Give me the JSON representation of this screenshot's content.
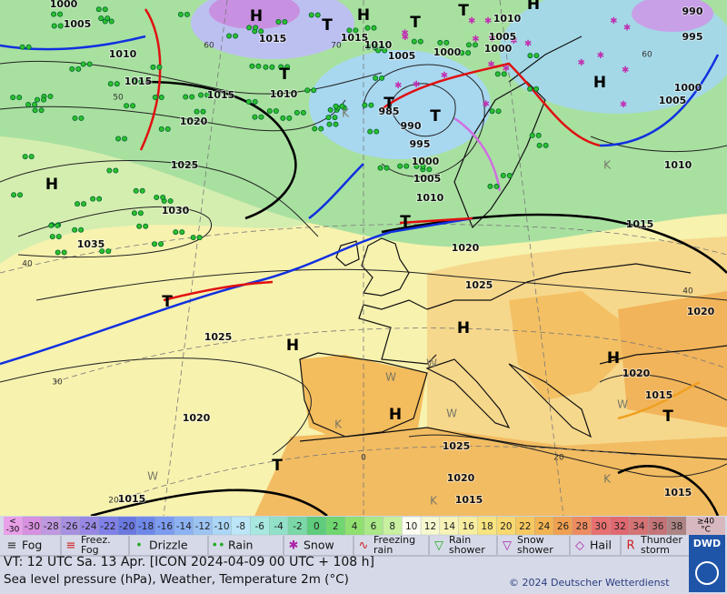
{
  "map": {
    "isobar_labels": [
      "1000",
      "1005",
      "1015",
      "1010",
      "1015",
      "1015",
      "1010",
      "1020",
      "1025",
      "1030",
      "1035",
      "1015",
      "1010",
      "1005",
      "1000",
      "1010",
      "1005",
      "1000",
      "990",
      "995",
      "1000",
      "1005",
      "985",
      "990",
      "995",
      "1000",
      "1005",
      "1010",
      "1020",
      "1015",
      "1010",
      "1025",
      "1025",
      "1020",
      "1020",
      "1020",
      "1015",
      "1025",
      "1020",
      "1015",
      "1015",
      "1015"
    ],
    "grid_labels": [
      "60",
      "70",
      "50",
      "40",
      "30",
      "20",
      "0",
      "20",
      "40",
      "60"
    ],
    "pressure_centers": [
      "H",
      "H",
      "H",
      "H",
      "H",
      "H",
      "H",
      "H",
      "H",
      "T",
      "T",
      "T",
      "T",
      "T",
      "T",
      "T",
      "T",
      "T",
      "T"
    ],
    "airmass_labels": [
      "W",
      "W",
      "W",
      "W",
      "W",
      "K",
      "K",
      "K",
      "K",
      "K"
    ]
  },
  "legend": {
    "low_cell": [
      "<",
      "-30"
    ],
    "high_cell": [
      "≥40",
      "°C"
    ],
    "low_color": "#e8a0e8",
    "high_color": "#d8b8c0",
    "steps": [
      -30,
      -28,
      -26,
      -24,
      -22,
      -20,
      -18,
      -16,
      -14,
      -12,
      -10,
      -8,
      -6,
      -4,
      -2,
      0,
      2,
      4,
      6,
      8,
      10,
      12,
      14,
      16,
      18,
      20,
      22,
      24,
      26,
      28,
      30,
      32,
      34,
      36,
      38
    ],
    "colors": [
      "#d890e0",
      "#c098e0",
      "#a890e0",
      "#9888e4",
      "#8080e8",
      "#6a78e0",
      "#6e88ea",
      "#7c9cf0",
      "#8cb2f2",
      "#9cc4f2",
      "#acd6f6",
      "#bce6f8",
      "#a8e8e0",
      "#92e0c8",
      "#7ad8a8",
      "#5ecc7c",
      "#70d670",
      "#90e070",
      "#aae888",
      "#c8f0a0",
      "#fcfcf0",
      "#f8f8d0",
      "#f8f4b8",
      "#f8eea0",
      "#f8e480",
      "#f8d870",
      "#f6c860",
      "#f2b452",
      "#f0a050",
      "#ee8c60",
      "#e87070",
      "#e06870",
      "#d47274",
      "#c47478",
      "#ac8484"
    ],
    "weather": [
      [
        "Fog"
      ],
      [
        "Freez.",
        "Fog"
      ],
      [
        "Drizzle"
      ],
      [
        "Rain"
      ],
      [
        "Snow"
      ],
      [
        "Freezing",
        "rain"
      ],
      [
        "Rain",
        "shower"
      ],
      [
        "Snow",
        "shower"
      ],
      [
        "Hail"
      ],
      [
        "Thunder",
        "storm"
      ]
    ]
  },
  "footer": {
    "valid_time": "VT: 12 UTC Sa.  13 Apr. [ICON 2024-04-09  00 UTC + 108 h]",
    "description": "Sea level pressure (hPa), Weather, Temperature 2m (°C)",
    "copyright": "© 2024 Deutscher Wetterdienst",
    "logo": "DWD"
  }
}
